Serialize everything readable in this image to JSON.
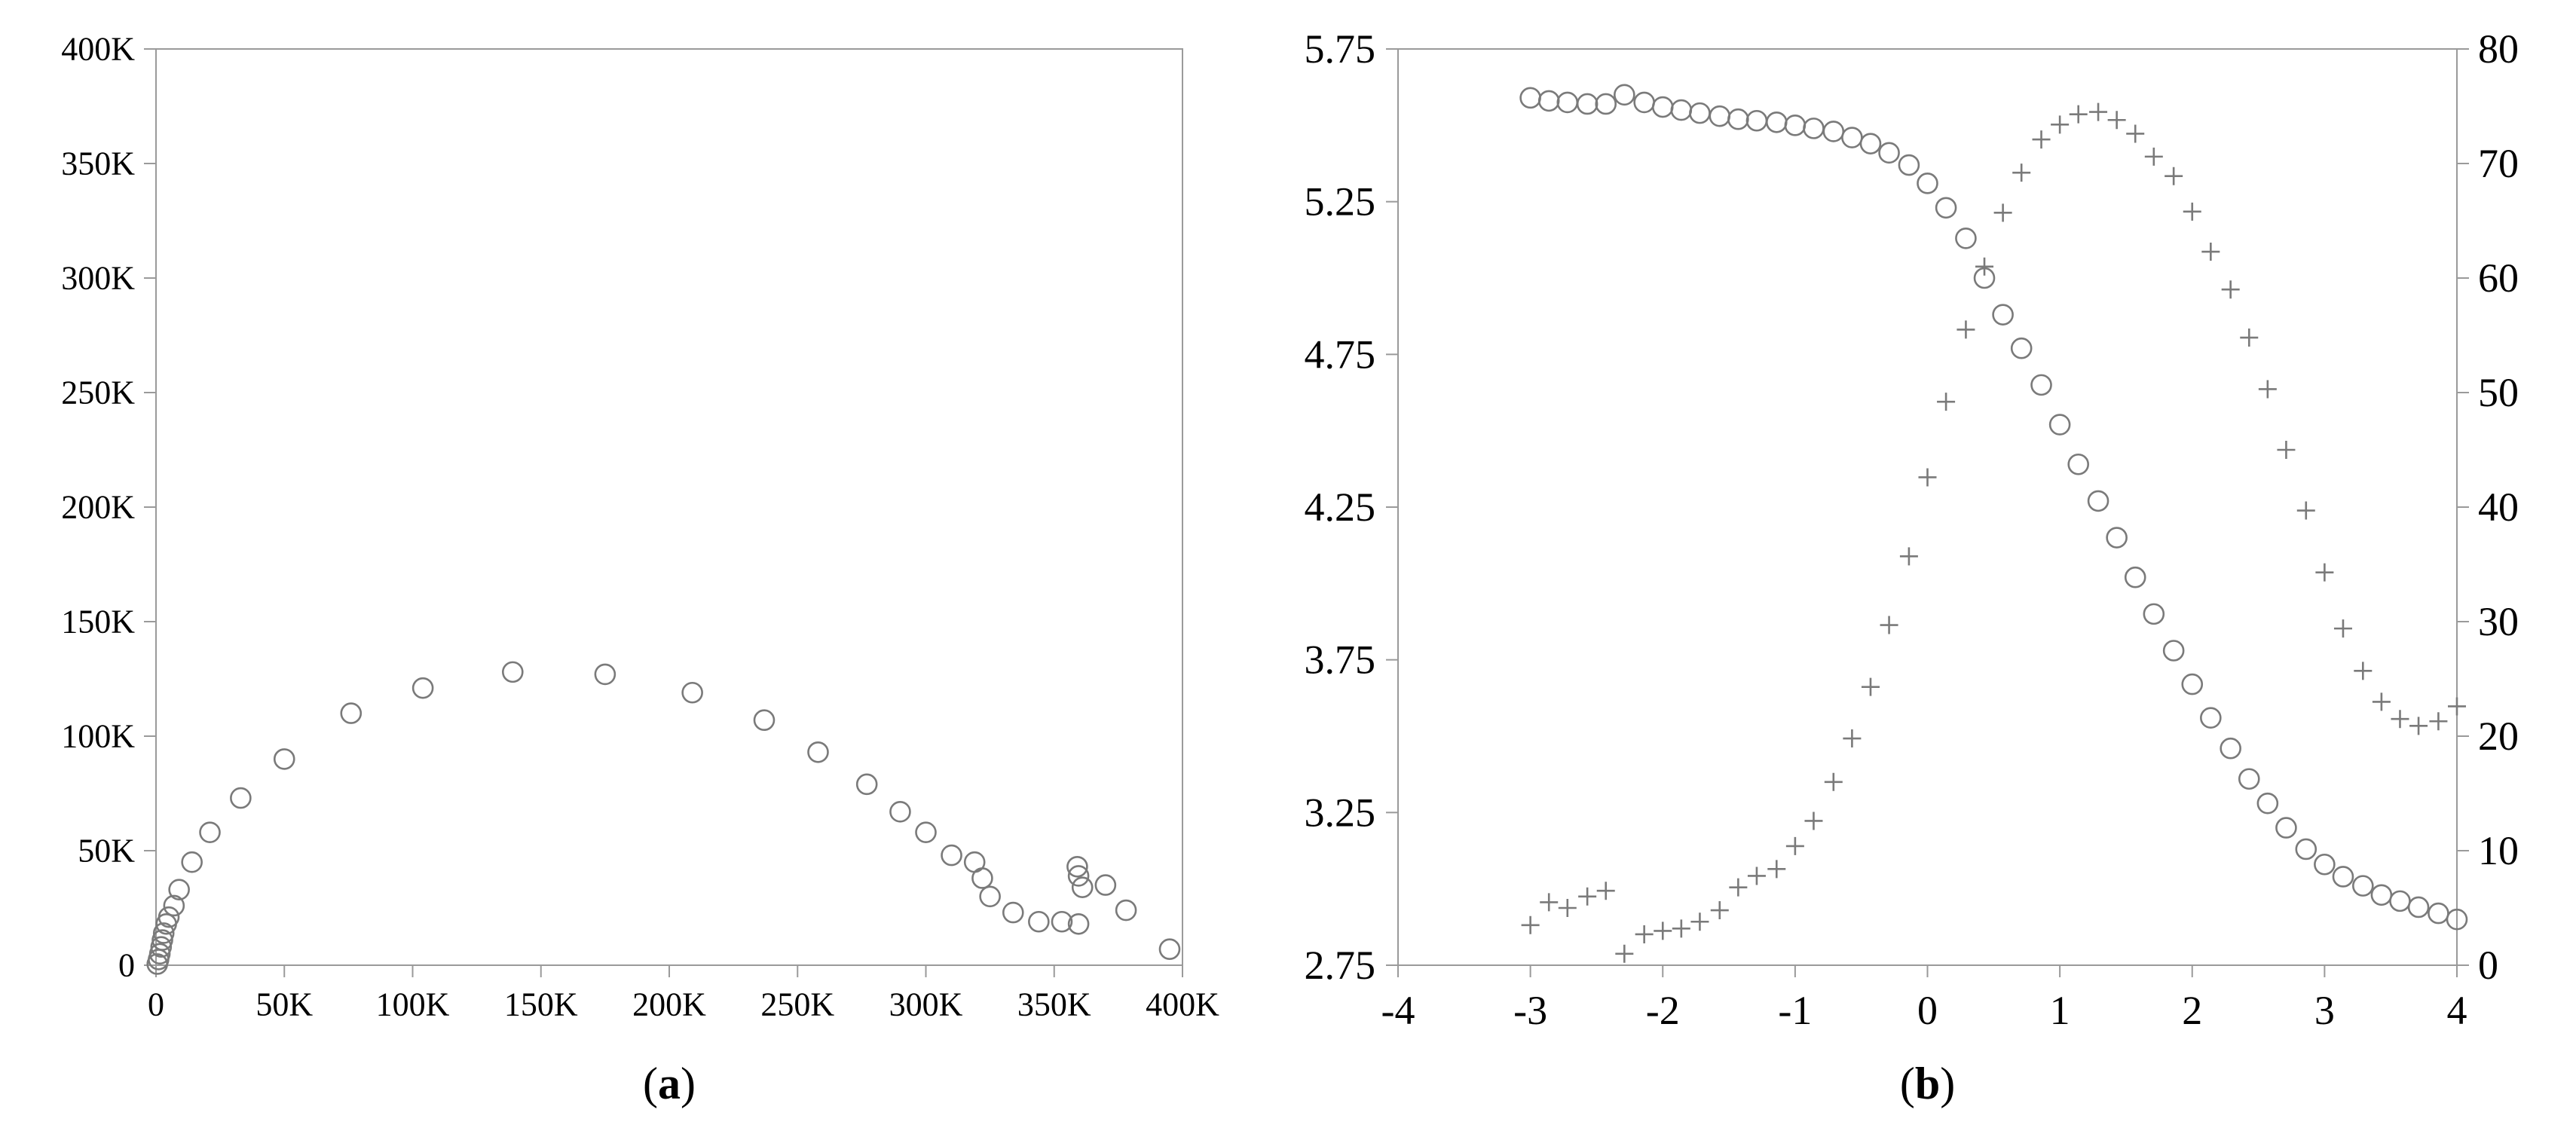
{
  "colors": {
    "background": "#ffffff",
    "axis": "#9a9a9a",
    "marker": "#7a7a7a",
    "text": "#000000"
  },
  "chart_data": [
    {
      "type": "scatter",
      "panel_label": "a",
      "x_tick_labels": [
        "0",
        "50K",
        "100K",
        "150K",
        "200K",
        "250K",
        "300K",
        "350K",
        "400K"
      ],
      "y_tick_labels": [
        "0",
        "50K",
        "100K",
        "150K",
        "200K",
        "250K",
        "300K",
        "350K",
        "400K"
      ],
      "xlim": [
        0,
        400000
      ],
      "ylim": [
        0,
        400000
      ],
      "series": [
        {
          "marker": "circle",
          "points": [
            [
              500,
              500
            ],
            [
              1000,
              2500
            ],
            [
              1500,
              5000
            ],
            [
              2000,
              8000
            ],
            [
              2500,
              11000
            ],
            [
              3000,
              14000
            ],
            [
              4000,
              18000
            ],
            [
              5000,
              21000
            ],
            [
              7000,
              26000
            ],
            [
              9000,
              33000
            ],
            [
              14000,
              45000
            ],
            [
              21000,
              58000
            ],
            [
              33000,
              73000
            ],
            [
              50000,
              90000
            ],
            [
              76000,
              110000
            ],
            [
              104000,
              121000
            ],
            [
              139000,
              128000
            ],
            [
              175000,
              127000
            ],
            [
              209000,
              119000
            ],
            [
              237000,
              107000
            ],
            [
              258000,
              93000
            ],
            [
              277000,
              79000
            ],
            [
              290000,
              67000
            ],
            [
              300000,
              58000
            ],
            [
              310000,
              48000
            ],
            [
              319000,
              45000
            ],
            [
              322000,
              38000
            ],
            [
              325000,
              30000
            ],
            [
              334000,
              23000
            ],
            [
              344000,
              19000
            ],
            [
              353000,
              19000
            ],
            [
              359000,
              43000
            ],
            [
              359500,
              39000
            ],
            [
              361000,
              34000
            ],
            [
              359500,
              18000
            ],
            [
              370000,
              35000
            ],
            [
              378000,
              24000
            ],
            [
              395000,
              7000
            ]
          ]
        }
      ]
    },
    {
      "type": "scatter",
      "panel_label": "b",
      "x_tick_labels": [
        "-4",
        "-3",
        "-2",
        "-1",
        "0",
        "1",
        "2",
        "3",
        "4"
      ],
      "y_left_tick_labels": [
        "2.75",
        "3.25",
        "3.75",
        "4.25",
        "4.75",
        "5.25",
        "5.75"
      ],
      "y_right_tick_labels": [
        "0",
        "10",
        "20",
        "30",
        "40",
        "50",
        "60",
        "70",
        "80"
      ],
      "xlim": [
        -4,
        4
      ],
      "ylim_left": [
        2.75,
        5.75
      ],
      "ylim_right": [
        0,
        80
      ],
      "series": [
        {
          "marker": "circle",
          "axis": "left",
          "points": [
            [
              -3.0,
              5.59
            ],
            [
              -2.86,
              5.58
            ],
            [
              -2.72,
              5.575
            ],
            [
              -2.57,
              5.57
            ],
            [
              -2.43,
              5.57
            ],
            [
              -2.29,
              5.6
            ],
            [
              -2.14,
              5.575
            ],
            [
              -2.0,
              5.56
            ],
            [
              -1.86,
              5.55
            ],
            [
              -1.72,
              5.54
            ],
            [
              -1.57,
              5.53
            ],
            [
              -1.43,
              5.52
            ],
            [
              -1.29,
              5.515
            ],
            [
              -1.14,
              5.51
            ],
            [
              -1.0,
              5.5
            ],
            [
              -0.86,
              5.49
            ],
            [
              -0.71,
              5.48
            ],
            [
              -0.57,
              5.46
            ],
            [
              -0.43,
              5.44
            ],
            [
              -0.29,
              5.41
            ],
            [
              -0.14,
              5.37
            ],
            [
              0.0,
              5.31
            ],
            [
              0.14,
              5.23
            ],
            [
              0.29,
              5.13
            ],
            [
              0.43,
              5.0
            ],
            [
              0.57,
              4.88
            ],
            [
              0.71,
              4.77
            ],
            [
              0.86,
              4.65
            ],
            [
              1.0,
              4.52
            ],
            [
              1.14,
              4.39
            ],
            [
              1.29,
              4.27
            ],
            [
              1.43,
              4.15
            ],
            [
              1.57,
              4.02
            ],
            [
              1.71,
              3.9
            ],
            [
              1.86,
              3.78
            ],
            [
              2.0,
              3.67
            ],
            [
              2.14,
              3.56
            ],
            [
              2.29,
              3.46
            ],
            [
              2.43,
              3.36
            ],
            [
              2.57,
              3.28
            ],
            [
              2.71,
              3.2
            ],
            [
              2.86,
              3.13
            ],
            [
              3.0,
              3.08
            ],
            [
              3.14,
              3.04
            ],
            [
              3.29,
              3.01
            ],
            [
              3.43,
              2.98
            ],
            [
              3.57,
              2.96
            ],
            [
              3.71,
              2.94
            ],
            [
              3.86,
              2.92
            ],
            [
              4.0,
              2.9
            ]
          ]
        },
        {
          "marker": "plus",
          "axis": "right",
          "points": [
            [
              -3.0,
              3.5
            ],
            [
              -2.86,
              5.5
            ],
            [
              -2.72,
              5.0
            ],
            [
              -2.57,
              6.0
            ],
            [
              -2.43,
              6.5
            ],
            [
              -2.29,
              1.0
            ],
            [
              -2.14,
              2.7
            ],
            [
              -2.0,
              3.0
            ],
            [
              -1.86,
              3.2
            ],
            [
              -1.72,
              3.8
            ],
            [
              -1.57,
              4.8
            ],
            [
              -1.43,
              6.8
            ],
            [
              -1.29,
              7.8
            ],
            [
              -1.14,
              8.4
            ],
            [
              -1.0,
              10.4
            ],
            [
              -0.86,
              12.6
            ],
            [
              -0.71,
              16.0
            ],
            [
              -0.57,
              19.8
            ],
            [
              -0.43,
              24.3
            ],
            [
              -0.29,
              29.7
            ],
            [
              -0.14,
              35.7
            ],
            [
              0.0,
              42.6
            ],
            [
              0.14,
              49.2
            ],
            [
              0.29,
              55.5
            ],
            [
              0.43,
              61.0
            ],
            [
              0.57,
              65.7
            ],
            [
              0.71,
              69.2
            ],
            [
              0.86,
              72.1
            ],
            [
              1.0,
              73.4
            ],
            [
              1.14,
              74.3
            ],
            [
              1.29,
              74.5
            ],
            [
              1.43,
              73.8
            ],
            [
              1.57,
              72.6
            ],
            [
              1.71,
              70.6
            ],
            [
              1.86,
              68.9
            ],
            [
              2.0,
              65.8
            ],
            [
              2.14,
              62.3
            ],
            [
              2.29,
              59.0
            ],
            [
              2.43,
              54.8
            ],
            [
              2.57,
              50.3
            ],
            [
              2.71,
              45.0
            ],
            [
              2.86,
              39.7
            ],
            [
              3.0,
              34.3
            ],
            [
              3.14,
              29.4
            ],
            [
              3.29,
              25.7
            ],
            [
              3.43,
              23.0
            ],
            [
              3.57,
              21.5
            ],
            [
              3.71,
              20.9
            ],
            [
              3.86,
              21.3
            ],
            [
              4.0,
              22.6
            ]
          ]
        }
      ]
    }
  ]
}
